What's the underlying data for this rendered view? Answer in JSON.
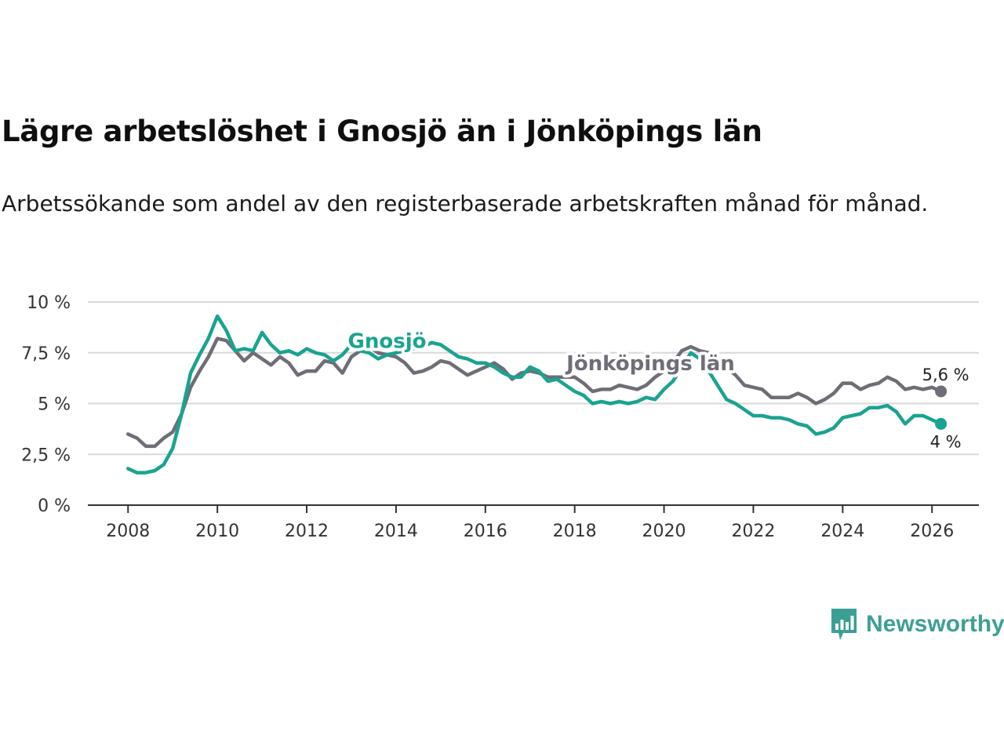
{
  "title": "Lägre arbetslöshet i Gnosjö än i Jönköpings län",
  "subtitle": "Arbetssökande som andel av den registerbaserade arbetskraften månad för månad.",
  "brand": {
    "name": "Newsworthy",
    "icon": "newsworthy-logo-icon",
    "color": "#3c9f95"
  },
  "chart_data": {
    "type": "line",
    "title": "Lägre arbetslöshet i Gnosjö än i Jönköpings län",
    "subtitle": "Arbetssökande som andel av den registerbaserade arbetskraften månad för månad.",
    "xlabel": "",
    "ylabel": "",
    "xlim": [
      2007.1,
      2027.05
    ],
    "ylim": [
      0,
      10
    ],
    "grid": true,
    "y_ticks": [
      0,
      2.5,
      5,
      7.5,
      10
    ],
    "y_tick_labels": [
      "0 %",
      "2,5 %",
      "5 %",
      "7,5 %",
      "10 %"
    ],
    "x_ticks": [
      2008,
      2010,
      2012,
      2014,
      2016,
      2018,
      2020,
      2022,
      2024,
      2026
    ],
    "x_tick_labels": [
      "2008",
      "2010",
      "2012",
      "2014",
      "2016",
      "2018",
      "2020",
      "2022",
      "2024",
      "2026"
    ],
    "series": [
      {
        "name": "Jönköpings län",
        "label": "Jönköpings län",
        "color": "#6f6d77",
        "end_label": "5,6 %",
        "label_anchor": [
          2019.7,
          6.65
        ],
        "points": [
          [
            2008.0,
            3.5
          ],
          [
            2008.2,
            3.3
          ],
          [
            2008.4,
            2.9
          ],
          [
            2008.6,
            2.9
          ],
          [
            2008.8,
            3.3
          ],
          [
            2009.0,
            3.6
          ],
          [
            2009.2,
            4.5
          ],
          [
            2009.4,
            5.8
          ],
          [
            2009.6,
            6.6
          ],
          [
            2009.8,
            7.3
          ],
          [
            2010.0,
            8.2
          ],
          [
            2010.2,
            8.1
          ],
          [
            2010.4,
            7.6
          ],
          [
            2010.6,
            7.1
          ],
          [
            2010.8,
            7.5
          ],
          [
            2011.0,
            7.2
          ],
          [
            2011.2,
            6.9
          ],
          [
            2011.4,
            7.3
          ],
          [
            2011.6,
            7.0
          ],
          [
            2011.8,
            6.4
          ],
          [
            2012.0,
            6.6
          ],
          [
            2012.2,
            6.6
          ],
          [
            2012.4,
            7.1
          ],
          [
            2012.6,
            7.0
          ],
          [
            2012.8,
            6.5
          ],
          [
            2013.0,
            7.3
          ],
          [
            2013.2,
            7.6
          ],
          [
            2013.4,
            7.8
          ],
          [
            2013.6,
            7.5
          ],
          [
            2013.8,
            7.4
          ],
          [
            2014.0,
            7.3
          ],
          [
            2014.2,
            7.0
          ],
          [
            2014.4,
            6.5
          ],
          [
            2014.6,
            6.6
          ],
          [
            2014.8,
            6.8
          ],
          [
            2015.0,
            7.1
          ],
          [
            2015.2,
            7.0
          ],
          [
            2015.4,
            6.7
          ],
          [
            2015.6,
            6.4
          ],
          [
            2015.8,
            6.6
          ],
          [
            2016.0,
            6.8
          ],
          [
            2016.2,
            7.0
          ],
          [
            2016.4,
            6.7
          ],
          [
            2016.6,
            6.2
          ],
          [
            2016.8,
            6.5
          ],
          [
            2017.0,
            6.6
          ],
          [
            2017.2,
            6.5
          ],
          [
            2017.4,
            6.3
          ],
          [
            2017.6,
            6.3
          ],
          [
            2017.8,
            6.3
          ],
          [
            2018.0,
            6.3
          ],
          [
            2018.2,
            6.0
          ],
          [
            2018.4,
            5.6
          ],
          [
            2018.6,
            5.7
          ],
          [
            2018.8,
            5.7
          ],
          [
            2019.0,
            5.9
          ],
          [
            2019.2,
            5.8
          ],
          [
            2019.4,
            5.7
          ],
          [
            2019.6,
            5.9
          ],
          [
            2019.8,
            6.3
          ],
          [
            2020.0,
            6.6
          ],
          [
            2020.2,
            7.0
          ],
          [
            2020.4,
            7.6
          ],
          [
            2020.6,
            7.8
          ],
          [
            2020.8,
            7.6
          ],
          [
            2021.0,
            7.5
          ],
          [
            2021.2,
            7.2
          ],
          [
            2021.4,
            6.8
          ],
          [
            2021.6,
            6.4
          ],
          [
            2021.8,
            5.9
          ],
          [
            2022.0,
            5.8
          ],
          [
            2022.2,
            5.7
          ],
          [
            2022.4,
            5.3
          ],
          [
            2022.6,
            5.3
          ],
          [
            2022.8,
            5.3
          ],
          [
            2023.0,
            5.5
          ],
          [
            2023.2,
            5.3
          ],
          [
            2023.4,
            5.0
          ],
          [
            2023.6,
            5.2
          ],
          [
            2023.8,
            5.5
          ],
          [
            2024.0,
            6.0
          ],
          [
            2024.2,
            6.0
          ],
          [
            2024.4,
            5.7
          ],
          [
            2024.6,
            5.9
          ],
          [
            2024.8,
            6.0
          ],
          [
            2025.0,
            6.3
          ],
          [
            2025.2,
            6.1
          ],
          [
            2025.4,
            5.7
          ],
          [
            2025.6,
            5.8
          ],
          [
            2025.8,
            5.7
          ],
          [
            2026.0,
            5.8
          ],
          [
            2026.2,
            5.6
          ]
        ]
      },
      {
        "name": "Gnosjö",
        "label": "Gnosjö",
        "color": "#1aa391",
        "end_label": "4 %",
        "label_anchor": [
          2013.8,
          7.75
        ],
        "points": [
          [
            2008.0,
            1.8
          ],
          [
            2008.2,
            1.6
          ],
          [
            2008.4,
            1.6
          ],
          [
            2008.6,
            1.7
          ],
          [
            2008.8,
            2.0
          ],
          [
            2009.0,
            2.8
          ],
          [
            2009.2,
            4.5
          ],
          [
            2009.4,
            6.5
          ],
          [
            2009.6,
            7.4
          ],
          [
            2009.8,
            8.2
          ],
          [
            2010.0,
            9.3
          ],
          [
            2010.2,
            8.6
          ],
          [
            2010.4,
            7.6
          ],
          [
            2010.6,
            7.7
          ],
          [
            2010.8,
            7.6
          ],
          [
            2011.0,
            8.5
          ],
          [
            2011.2,
            7.9
          ],
          [
            2011.4,
            7.5
          ],
          [
            2011.6,
            7.6
          ],
          [
            2011.8,
            7.4
          ],
          [
            2012.0,
            7.7
          ],
          [
            2012.2,
            7.5
          ],
          [
            2012.4,
            7.4
          ],
          [
            2012.6,
            7.1
          ],
          [
            2012.8,
            7.4
          ],
          [
            2013.0,
            7.9
          ],
          [
            2013.2,
            7.6
          ],
          [
            2013.4,
            7.5
          ],
          [
            2013.6,
            7.2
          ],
          [
            2013.8,
            7.4
          ],
          [
            2014.0,
            7.5
          ],
          [
            2014.2,
            7.6
          ],
          [
            2014.4,
            7.7
          ],
          [
            2014.6,
            7.8
          ],
          [
            2014.8,
            8.0
          ],
          [
            2015.0,
            7.9
          ],
          [
            2015.2,
            7.6
          ],
          [
            2015.4,
            7.3
          ],
          [
            2015.6,
            7.2
          ],
          [
            2015.8,
            7.0
          ],
          [
            2016.0,
            7.0
          ],
          [
            2016.2,
            6.8
          ],
          [
            2016.4,
            6.5
          ],
          [
            2016.6,
            6.3
          ],
          [
            2016.8,
            6.3
          ],
          [
            2017.0,
            6.8
          ],
          [
            2017.2,
            6.6
          ],
          [
            2017.4,
            6.1
          ],
          [
            2017.6,
            6.2
          ],
          [
            2017.8,
            5.9
          ],
          [
            2018.0,
            5.6
          ],
          [
            2018.2,
            5.4
          ],
          [
            2018.4,
            5.0
          ],
          [
            2018.6,
            5.1
          ],
          [
            2018.8,
            5.0
          ],
          [
            2019.0,
            5.1
          ],
          [
            2019.2,
            5.0
          ],
          [
            2019.4,
            5.1
          ],
          [
            2019.6,
            5.3
          ],
          [
            2019.8,
            5.2
          ],
          [
            2020.0,
            5.7
          ],
          [
            2020.2,
            6.1
          ],
          [
            2020.4,
            6.8
          ],
          [
            2020.6,
            7.5
          ],
          [
            2020.8,
            7.2
          ],
          [
            2021.0,
            6.6
          ],
          [
            2021.2,
            5.9
          ],
          [
            2021.4,
            5.2
          ],
          [
            2021.6,
            5.0
          ],
          [
            2021.8,
            4.7
          ],
          [
            2022.0,
            4.4
          ],
          [
            2022.2,
            4.4
          ],
          [
            2022.4,
            4.3
          ],
          [
            2022.6,
            4.3
          ],
          [
            2022.8,
            4.2
          ],
          [
            2023.0,
            4.0
          ],
          [
            2023.2,
            3.9
          ],
          [
            2023.4,
            3.5
          ],
          [
            2023.6,
            3.6
          ],
          [
            2023.8,
            3.8
          ],
          [
            2024.0,
            4.3
          ],
          [
            2024.2,
            4.4
          ],
          [
            2024.4,
            4.5
          ],
          [
            2024.6,
            4.8
          ],
          [
            2024.8,
            4.8
          ],
          [
            2025.0,
            4.9
          ],
          [
            2025.2,
            4.6
          ],
          [
            2025.4,
            4.0
          ],
          [
            2025.6,
            4.4
          ],
          [
            2025.8,
            4.4
          ],
          [
            2026.0,
            4.2
          ],
          [
            2026.2,
            4.0
          ]
        ]
      }
    ]
  }
}
